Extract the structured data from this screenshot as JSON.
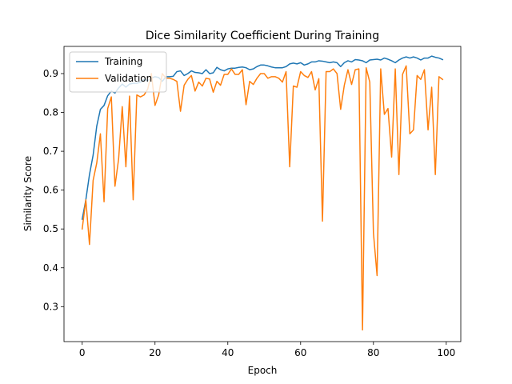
{
  "chart_data": {
    "type": "line",
    "title": "Dice Similarity Coefficient During Training",
    "xlabel": "Epoch",
    "ylabel": "Similarity Score",
    "xlim": [
      -5,
      104
    ],
    "ylim": [
      0.21,
      0.97
    ],
    "xticks": [
      0,
      20,
      40,
      60,
      80,
      100
    ],
    "yticks": [
      0.3,
      0.4,
      0.5,
      0.6,
      0.7,
      0.8,
      0.9
    ],
    "legend_position": "upper-left",
    "grid": false,
    "series": [
      {
        "name": "Training",
        "color": "#1f77b4",
        "x": [
          0,
          1,
          2,
          3,
          4,
          5,
          6,
          7,
          8,
          9,
          10,
          11,
          12,
          13,
          14,
          15,
          16,
          17,
          18,
          19,
          20,
          21,
          22,
          23,
          24,
          25,
          26,
          27,
          28,
          29,
          30,
          31,
          32,
          33,
          34,
          35,
          36,
          37,
          38,
          39,
          40,
          41,
          42,
          43,
          44,
          45,
          46,
          47,
          48,
          49,
          50,
          51,
          52,
          53,
          54,
          55,
          56,
          57,
          58,
          59,
          60,
          61,
          62,
          63,
          64,
          65,
          66,
          67,
          68,
          69,
          70,
          71,
          72,
          73,
          74,
          75,
          76,
          77,
          78,
          79,
          80,
          81,
          82,
          83,
          84,
          85,
          86,
          87,
          88,
          89,
          90,
          91,
          92,
          93,
          94,
          95,
          96,
          97,
          98,
          99
        ],
        "values": [
          0.525,
          0.575,
          0.64,
          0.69,
          0.765,
          0.808,
          0.818,
          0.843,
          0.855,
          0.85,
          0.863,
          0.873,
          0.865,
          0.873,
          0.875,
          0.875,
          0.878,
          0.885,
          0.882,
          0.888,
          0.892,
          0.89,
          0.88,
          0.892,
          0.892,
          0.893,
          0.905,
          0.907,
          0.895,
          0.9,
          0.907,
          0.903,
          0.902,
          0.9,
          0.91,
          0.9,
          0.902,
          0.916,
          0.91,
          0.907,
          0.912,
          0.914,
          0.914,
          0.916,
          0.917,
          0.915,
          0.91,
          0.912,
          0.918,
          0.922,
          0.922,
          0.92,
          0.917,
          0.915,
          0.915,
          0.915,
          0.918,
          0.925,
          0.927,
          0.925,
          0.928,
          0.922,
          0.925,
          0.93,
          0.93,
          0.933,
          0.932,
          0.93,
          0.928,
          0.93,
          0.928,
          0.918,
          0.928,
          0.933,
          0.93,
          0.936,
          0.935,
          0.933,
          0.928,
          0.935,
          0.936,
          0.937,
          0.935,
          0.94,
          0.937,
          0.933,
          0.928,
          0.935,
          0.94,
          0.943,
          0.94,
          0.943,
          0.94,
          0.935,
          0.94,
          0.94,
          0.945,
          0.942,
          0.94,
          0.936
        ]
      },
      {
        "name": "Validation",
        "color": "#ff7f0e",
        "x": [
          0,
          1,
          2,
          3,
          4,
          5,
          6,
          7,
          8,
          9,
          10,
          11,
          12,
          13,
          14,
          15,
          16,
          17,
          18,
          19,
          20,
          21,
          22,
          23,
          24,
          25,
          26,
          27,
          28,
          29,
          30,
          31,
          32,
          33,
          34,
          35,
          36,
          37,
          38,
          39,
          40,
          41,
          42,
          43,
          44,
          45,
          46,
          47,
          48,
          49,
          50,
          51,
          52,
          53,
          54,
          55,
          56,
          57,
          58,
          59,
          60,
          61,
          62,
          63,
          64,
          65,
          66,
          67,
          68,
          69,
          70,
          71,
          72,
          73,
          74,
          75,
          76,
          77,
          78,
          79,
          80,
          81,
          82,
          83,
          84,
          85,
          86,
          87,
          88,
          89,
          90,
          91,
          92,
          93,
          94,
          95,
          96,
          97,
          98,
          99
        ],
        "values": [
          0.5,
          0.575,
          0.46,
          0.625,
          0.67,
          0.745,
          0.57,
          0.81,
          0.84,
          0.61,
          0.68,
          0.815,
          0.66,
          0.842,
          0.575,
          0.845,
          0.84,
          0.845,
          0.86,
          0.9,
          0.818,
          0.845,
          0.9,
          0.888,
          0.888,
          0.885,
          0.88,
          0.803,
          0.87,
          0.885,
          0.895,
          0.855,
          0.878,
          0.868,
          0.888,
          0.886,
          0.852,
          0.88,
          0.87,
          0.898,
          0.898,
          0.912,
          0.898,
          0.898,
          0.91,
          0.82,
          0.88,
          0.872,
          0.888,
          0.9,
          0.9,
          0.888,
          0.892,
          0.892,
          0.888,
          0.878,
          0.905,
          0.66,
          0.868,
          0.865,
          0.905,
          0.895,
          0.89,
          0.905,
          0.858,
          0.887,
          0.52,
          0.905,
          0.905,
          0.912,
          0.9,
          0.808,
          0.87,
          0.91,
          0.872,
          0.91,
          0.912,
          0.24,
          0.915,
          0.878,
          0.49,
          0.38,
          0.912,
          0.795,
          0.81,
          0.685,
          0.912,
          0.64,
          0.898,
          0.92,
          0.745,
          0.755,
          0.895,
          0.885,
          0.91,
          0.755,
          0.865,
          0.64,
          0.892,
          0.885
        ]
      }
    ]
  }
}
